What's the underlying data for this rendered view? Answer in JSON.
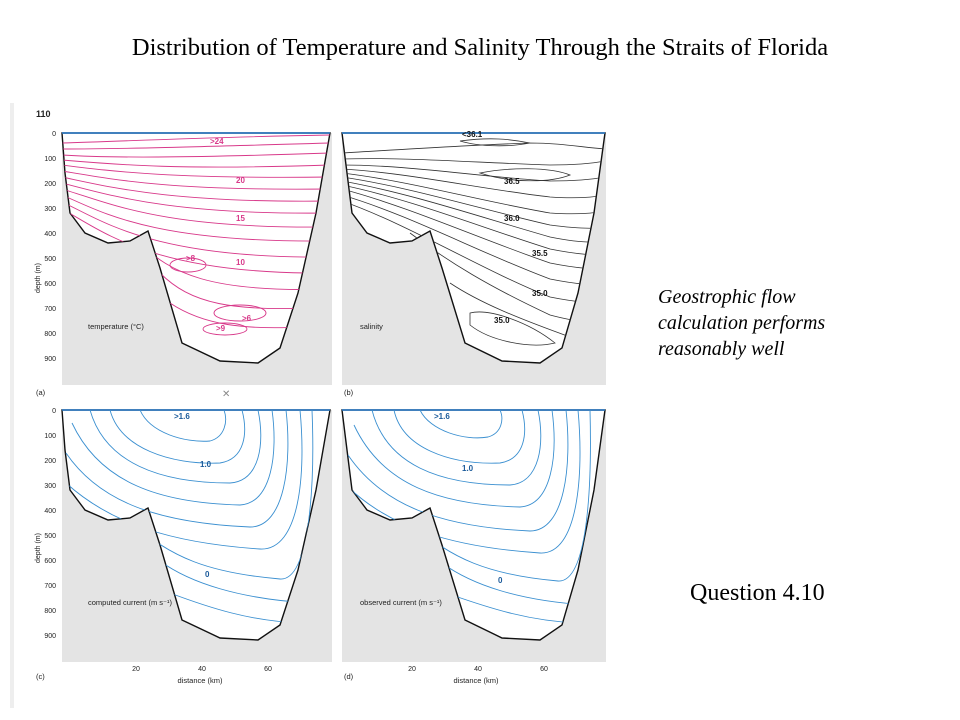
{
  "slide": {
    "title": "Distribution of Temperature and Salinity Through the Straits of Florida",
    "note_lines": [
      "Geostrophic flow",
      "calculation performs",
      "reasonably well"
    ],
    "question": "Question 4.10"
  },
  "figure": {
    "page_number": "110",
    "depth_axis_label": "depth (m)",
    "distance_axis_label": "distance (km)",
    "depth_ticks": [
      "0",
      "100",
      "200",
      "300",
      "400",
      "500",
      "600",
      "700",
      "800",
      "900"
    ],
    "distance_ticks": [
      "20",
      "40",
      "60"
    ],
    "panels": {
      "a": {
        "letter": "(a)",
        "label": "temperature (°C)",
        "contour_labels": [
          ">24",
          "20",
          "15",
          "10",
          ">8",
          ">6",
          ">9"
        ],
        "contour_color": "#d8398a"
      },
      "b": {
        "letter": "(b)",
        "label": "salinity",
        "contour_labels": [
          "<36.1",
          "36.5",
          "36.0",
          "35.5",
          "35.0",
          "35.0"
        ],
        "contour_color": "#333333"
      },
      "c": {
        "letter": "(c)",
        "label": "computed current (m s⁻¹)",
        "contour_labels": [
          ">1.6",
          "1.0",
          "0"
        ],
        "contour_color": "#3a8fd0"
      },
      "d": {
        "letter": "(d)",
        "label": "observed current (m s⁻¹)",
        "contour_labels": [
          ">1.6",
          "1.0",
          "0"
        ],
        "contour_color": "#3a8fd0"
      }
    },
    "seabed_color": "#e4e4e4",
    "surface_line_color": "#2a7fcf"
  }
}
